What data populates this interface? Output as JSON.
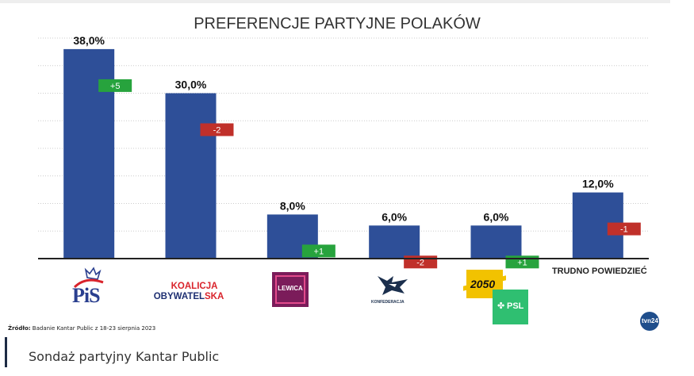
{
  "caption": "Sondaż partyjny Kantar Public",
  "source_label": "Źródło:",
  "source_text": "Badanie Kantar Public z 18-23 sierpnia 2023",
  "logos": {
    "pis": "PiS",
    "ko_line1": "KOALICJA",
    "ko_line2a": "OBYWATEL",
    "ko_line2b": "SKA",
    "lewica": "LEWICA",
    "konfederacja": "KONFEDERACJA",
    "tp2050": "2050",
    "psl": "PSL",
    "tvn": "tvn24"
  },
  "colors": {
    "bar": "#2e4f98",
    "up": "#27a33d",
    "down": "#c0302a",
    "ko": "#1e2f72",
    "ko_accent": "#d9232b",
    "lewica": "#7b1c5a",
    "tp2050": "#f2c200",
    "psl": "#2fbf71"
  },
  "chart_data": {
    "type": "bar",
    "title": "PREFERENCJE PARTYJNE POLAKÓW",
    "categories": [
      "PiS",
      "Koalicja Obywatelska",
      "Lewica",
      "Konfederacja",
      "Trzecia Droga (2050 + PSL)",
      "TRUDNO POWIEDZIEĆ"
    ],
    "values": [
      38.0,
      30.0,
      8.0,
      6.0,
      6.0,
      12.0
    ],
    "value_labels": [
      "38,0%",
      "30,0%",
      "8,0%",
      "6,0%",
      "6,0%",
      "12,0%"
    ],
    "changes": [
      "+5",
      "-2",
      "+1",
      "-2",
      "+1",
      "-1"
    ],
    "change_direction": [
      "up",
      "down",
      "up",
      "down",
      "up",
      "down"
    ],
    "ylim": [
      0,
      40
    ],
    "grid": true,
    "text_category_label": "TRUDNO POWIEDZIEĆ"
  }
}
